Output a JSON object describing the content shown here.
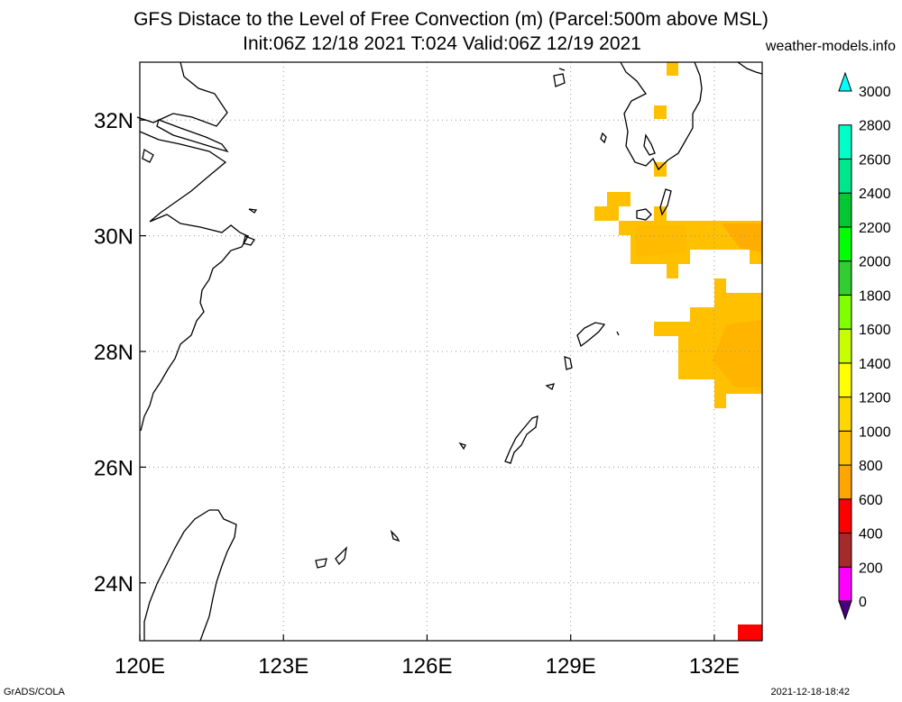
{
  "header": {
    "title_line1": "GFS Distace to the Level of Free Convection (m) (Parcel:500m above MSL)",
    "title_line2": "Init:06Z 12/18 2021 T:024 Valid:06Z 12/19 2021",
    "site": "weather-models.info"
  },
  "footer": {
    "left": "GrADS/COLA",
    "right": "2021-12-18-18:42"
  },
  "map": {
    "lon_range": [
      120,
      133
    ],
    "lat_range": [
      23,
      33
    ],
    "lon_ticks": [
      {
        "value": 120,
        "label": "120E"
      },
      {
        "value": 123,
        "label": "123E"
      },
      {
        "value": 126,
        "label": "126E"
      },
      {
        "value": 129,
        "label": "129E"
      },
      {
        "value": 132,
        "label": "132E"
      }
    ],
    "lat_ticks": [
      {
        "value": 24,
        "label": "24N"
      },
      {
        "value": 26,
        "label": "26N"
      },
      {
        "value": 28,
        "label": "28N"
      },
      {
        "value": 30,
        "label": "30N"
      },
      {
        "value": 32,
        "label": "32N"
      }
    ],
    "grid": "dotted"
  },
  "colorbar": {
    "levels": [
      "0",
      "200",
      "400",
      "600",
      "800",
      "1000",
      "1200",
      "1400",
      "1600",
      "1800",
      "2000",
      "2200",
      "2400",
      "2600",
      "2800",
      "3000"
    ],
    "colors": [
      "#4b0082",
      "#ff00ff",
      "#a52a2a",
      "#ff0000",
      "#ffa500",
      "#ffc000",
      "#ffd700",
      "#ffff00",
      "#c8ff00",
      "#7fff00",
      "#32cd32",
      "#00ff00",
      "#00c832",
      "#00e68c",
      "#00ffc8",
      "#00ffff"
    ]
  }
}
